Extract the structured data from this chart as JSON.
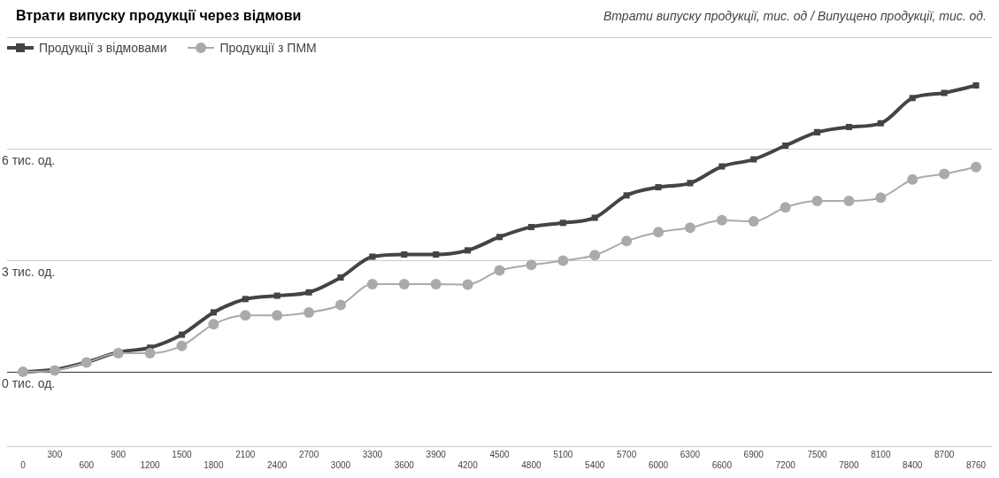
{
  "chart_data": {
    "type": "line",
    "title": "Втрати випуску продукції через відмови",
    "subtitle": "Втрати випуску продукції, тис. од / Випущено продукції, тис. од.",
    "categories": [
      "0",
      "300",
      "600",
      "900",
      "1200",
      "1500",
      "1800",
      "2100",
      "2400",
      "2700",
      "3000",
      "3300",
      "3600",
      "3900",
      "4200",
      "4500",
      "4800",
      "5100",
      "5400",
      "5700",
      "6000",
      "6300",
      "6600",
      "6900",
      "7200",
      "7500",
      "7800",
      "8100",
      "8400",
      "8700",
      "8760"
    ],
    "series": [
      {
        "name": "Продукції з відмовами",
        "color": "#444444",
        "marker": "square",
        "values": [
          0,
          0.06,
          0.26,
          0.53,
          0.65,
          1.0,
          1.6,
          1.96,
          2.05,
          2.14,
          2.54,
          3.1,
          3.16,
          3.16,
          3.27,
          3.63,
          3.9,
          4.01,
          4.15,
          4.75,
          4.97,
          5.08,
          5.53,
          5.72,
          6.09,
          6.45,
          6.59,
          6.69,
          7.37,
          7.51,
          7.71
        ]
      },
      {
        "name": "Продукції з ПММ",
        "color": "#aaaaaa",
        "marker": "circle",
        "values": [
          0,
          0.04,
          0.25,
          0.5,
          0.5,
          0.7,
          1.28,
          1.52,
          1.52,
          1.6,
          1.8,
          2.36,
          2.36,
          2.36,
          2.35,
          2.73,
          2.88,
          2.99,
          3.14,
          3.52,
          3.76,
          3.88,
          4.08,
          4.05,
          4.43,
          4.6,
          4.6,
          4.69,
          5.18,
          5.33,
          5.51
        ]
      }
    ],
    "ylim": [
      -2,
      9
    ],
    "yticks": [
      {
        "value": -2,
        "label": null
      },
      {
        "value": 0,
        "label": "0 тис. од."
      },
      {
        "value": 3,
        "label": "3 тис. од."
      },
      {
        "value": 6,
        "label": "6 тис. од."
      },
      {
        "value": 9,
        "label": null
      }
    ],
    "grid": "y",
    "legend": "top left"
  }
}
